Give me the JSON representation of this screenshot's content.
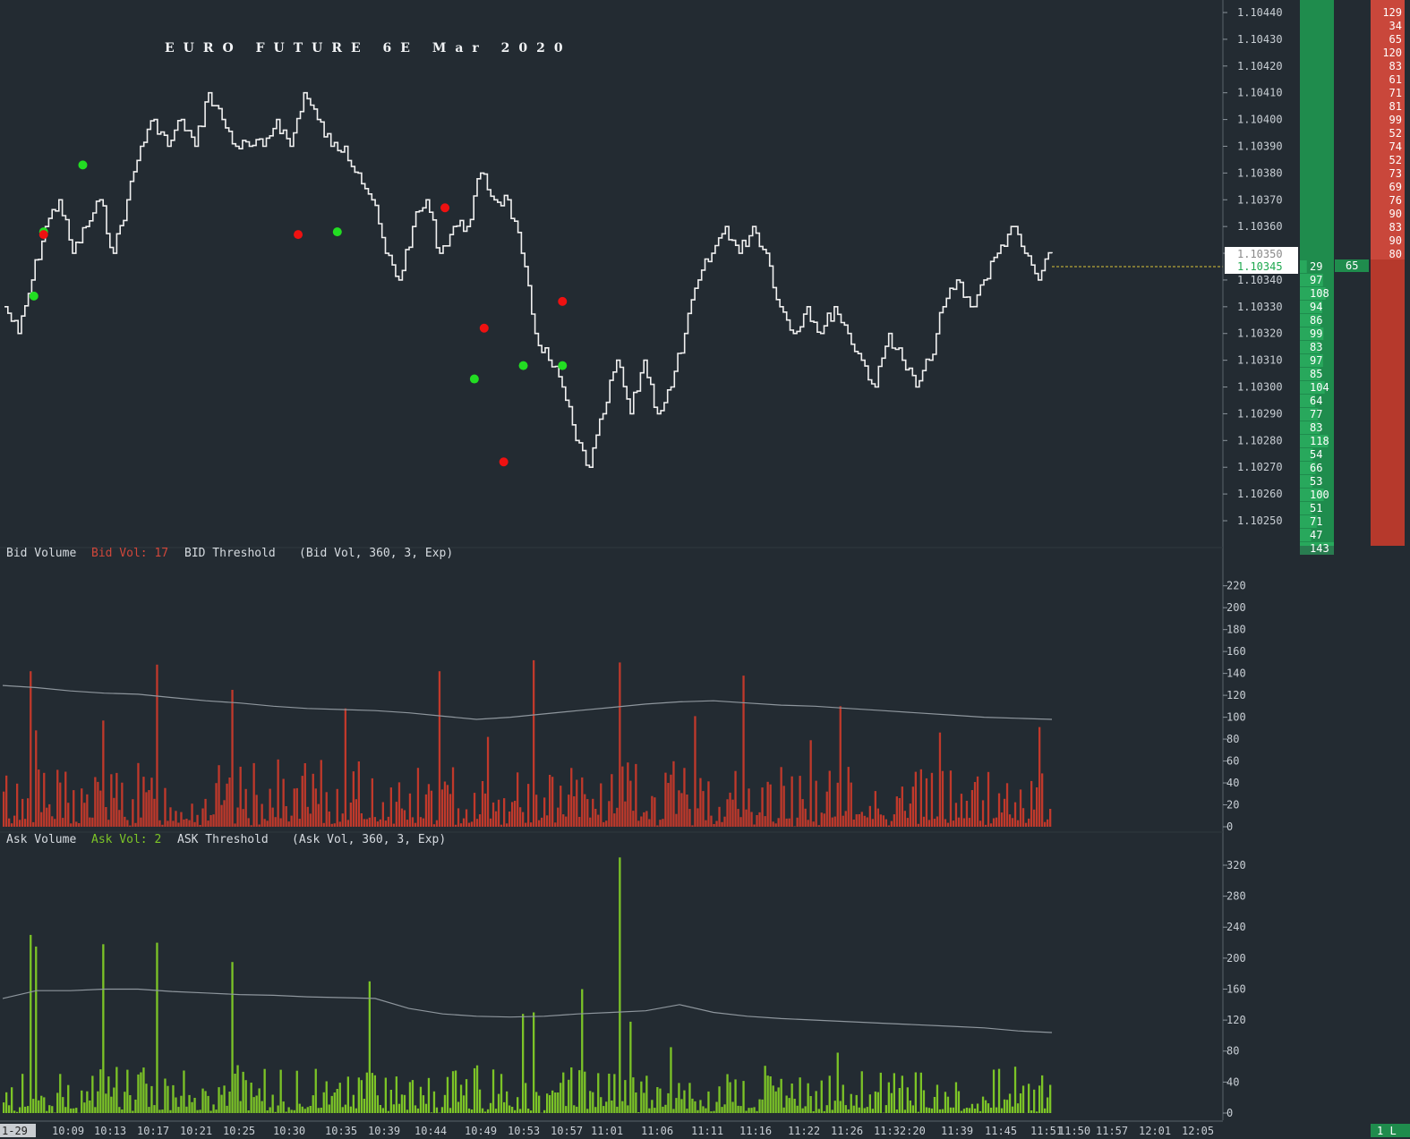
{
  "chart_data": [
    {
      "type": "line",
      "panel": "price",
      "title": "EURO FUTURE 6E Mar 2020",
      "ylim": [
        1.10242,
        1.10446
      ],
      "y_ticks": [
        "1.10440",
        "1.10430",
        "1.10420",
        "1.10410",
        "1.10400",
        "1.10390",
        "1.10380",
        "1.10370",
        "1.10360",
        "1.10350",
        "1.10340",
        "1.10330",
        "1.10320",
        "1.10310",
        "1.10300",
        "1.10290",
        "1.10280",
        "1.10270",
        "1.10260",
        "1.10250"
      ],
      "current_price": "1.10345",
      "price_box_top": "1.10350",
      "series": [
        {
          "values": [
            1.1033,
            1.1032,
            1.1034,
            1.1036,
            1.1037,
            1.1035,
            1.1036,
            1.1037,
            1.1035,
            1.1037,
            1.1039,
            1.104,
            1.1039,
            1.104,
            1.1039,
            1.1041,
            1.104,
            1.1039,
            1.1039,
            1.1039,
            1.104,
            1.1039,
            1.1041,
            1.104,
            1.1039,
            1.1039,
            1.1038,
            1.1037,
            1.1035,
            1.1034,
            1.1036,
            1.1037,
            1.1035,
            1.1036,
            1.1036,
            1.1038,
            1.1037,
            1.1037,
            1.1035,
            1.1032,
            1.1031,
            1.103,
            1.1028,
            1.1027,
            1.1029,
            1.1031,
            1.1029,
            1.1031,
            1.1029,
            1.103,
            1.1032,
            1.1034,
            1.1035,
            1.1036,
            1.1035,
            1.1036,
            1.1035,
            1.1033,
            1.1032,
            1.1033,
            1.1032,
            1.1033,
            1.1032,
            1.1031,
            1.103,
            1.1032,
            1.1031,
            1.103,
            1.1031,
            1.1033,
            1.1034,
            1.1033,
            1.1034,
            1.1035,
            1.1036,
            1.1035,
            1.1034,
            1.1035
          ]
        }
      ],
      "buy_markers": [
        [
          1.10334,
          "10:08"
        ],
        [
          1.10358,
          "10:09"
        ],
        [
          1.10383,
          "10:13"
        ],
        [
          1.10358,
          "10:39"
        ],
        [
          1.10303,
          "10:53"
        ],
        [
          1.10308,
          "10:58"
        ],
        [
          1.10308,
          "11:02"
        ]
      ],
      "sell_markers": [
        [
          1.10357,
          "10:09"
        ],
        [
          1.10357,
          "10:35"
        ],
        [
          1.10367,
          "10:50"
        ],
        [
          1.10322,
          "10:54"
        ],
        [
          1.10272,
          "10:56"
        ],
        [
          1.10332,
          "11:02"
        ]
      ]
    },
    {
      "type": "bar",
      "panel": "bid-volume",
      "ylim": [
        0,
        232
      ],
      "y_ticks": [
        "220",
        "200",
        "180",
        "160",
        "140",
        "120",
        "100",
        "80",
        "60",
        "40",
        "20",
        "0"
      ],
      "bar_color": "#c0392b",
      "threshold_values": [
        129,
        127,
        124,
        122,
        121,
        118,
        115,
        113,
        110,
        108,
        107,
        106,
        104,
        101,
        98,
        100,
        103,
        106,
        109,
        112,
        114,
        115,
        113,
        111,
        110,
        108,
        106,
        104,
        102,
        100,
        99,
        98
      ]
    },
    {
      "type": "bar",
      "panel": "ask-volume",
      "ylim": [
        0,
        335
      ],
      "y_ticks": [
        "320",
        "280",
        "240",
        "200",
        "160",
        "120",
        "80",
        "40",
        "0"
      ],
      "bar_color": "#7cc427",
      "threshold_values": [
        148,
        158,
        158,
        160,
        160,
        157,
        155,
        153,
        152,
        150,
        149,
        148,
        135,
        128,
        125,
        124,
        125,
        128,
        130,
        132,
        140,
        130,
        125,
        122,
        120,
        118,
        116,
        114,
        112,
        110,
        106,
        104
      ]
    }
  ],
  "title": "EURO FUTURE 6E Mar 2020",
  "bid_panel": {
    "name": "Bid Volume",
    "value_label": "Bid Vol: 17",
    "threshold_label": "BID Threshold",
    "params": "(Bid Vol, 360, 3, Exp)"
  },
  "ask_panel": {
    "name": "Ask Volume",
    "value_label": "Ask Vol: 2",
    "threshold_label": "ASK Threshold",
    "params": "(Ask Vol, 360, 3, Exp)"
  },
  "time_axis": {
    "first_label": "1-29",
    "labels": [
      "10:09",
      "10:13",
      "10:17",
      "10:21",
      "10:25",
      "10:30",
      "10:35",
      "10:39",
      "10:44",
      "10:49",
      "10:53",
      "10:57",
      "11:01",
      "11:06",
      "11:11",
      "11:16",
      "11:22",
      "11:26",
      "11:32:20",
      "11:39",
      "11:45",
      "11:51",
      "11:50",
      "11:57",
      "12:01",
      "12:05"
    ],
    "corner_label": "1 L"
  },
  "ladder": {
    "ask_volumes": [
      "129",
      "34",
      "65",
      "120",
      "83",
      "61",
      "71",
      "81",
      "99",
      "52",
      "74",
      "52",
      "73",
      "69",
      "76",
      "90",
      "83",
      "90",
      "80"
    ],
    "bid_volumes": [
      "29",
      "97",
      "108",
      "94",
      "86",
      "99",
      "83",
      "97",
      "85",
      "104",
      "64",
      "77",
      "83",
      "118",
      "54",
      "66",
      "53",
      "100",
      "51",
      "71",
      "47",
      "143"
    ],
    "last_trade_size": "65"
  },
  "colors": {
    "background": "#232b32",
    "price_line": "#f0f0f0",
    "buy_marker": "#22dd22",
    "sell_marker": "#ee1111",
    "bid_bars": "#c0392b",
    "ask_bars": "#7cc427",
    "threshold_line": "#8e969d",
    "ladder_bid": "#1f8c4d",
    "ladder_ask": "#c0392b"
  }
}
